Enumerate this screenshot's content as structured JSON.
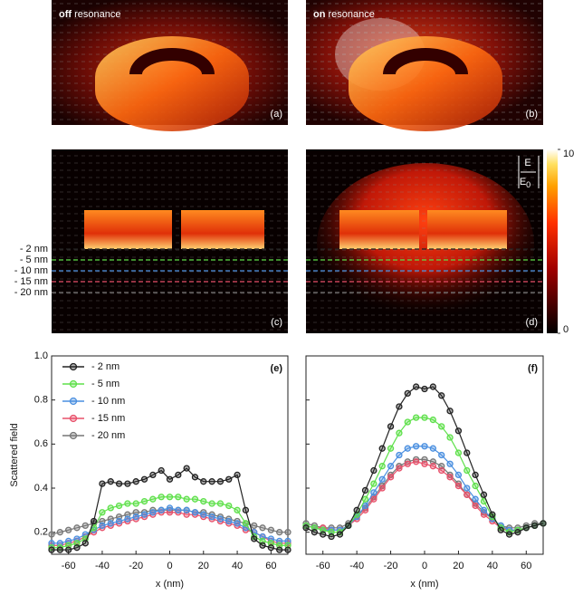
{
  "panels": {
    "a": {
      "title_bold": "off",
      "title_rest": "resonance",
      "label": "(a)"
    },
    "b": {
      "title_bold": "on",
      "title_rest": "resonance",
      "label": "(b)"
    },
    "c": {
      "label": "(c)"
    },
    "d": {
      "label": "(d)"
    }
  },
  "depth_lines": [
    {
      "label": "- 2 nm",
      "color": "#222222"
    },
    {
      "label": "- 5 nm",
      "color": "#5ee04a"
    },
    {
      "label": "- 10 nm",
      "color": "#4a8fe0"
    },
    {
      "label": "- 15 nm",
      "color": "#e8506a"
    },
    {
      "label": "- 20 nm",
      "color": "#777777"
    }
  ],
  "colorbar": {
    "lim": [
      0,
      10
    ],
    "ticks": [
      0,
      10
    ],
    "numerator": "E",
    "denominator": "E",
    "subscript": "0"
  },
  "chart_data": [
    {
      "type": "line",
      "label": "(e)",
      "ylabel": "Scattered field",
      "xlabel": "x (nm)",
      "legend": "upper left",
      "x": [
        -70,
        -65,
        -60,
        -55,
        -50,
        -45,
        -40,
        -35,
        -30,
        -25,
        -20,
        -15,
        -10,
        -5,
        0,
        5,
        10,
        15,
        20,
        25,
        30,
        35,
        40,
        45,
        50,
        55,
        60,
        65,
        70
      ],
      "xlim": [
        -70,
        70
      ],
      "xticks": [
        -60,
        -40,
        -20,
        0,
        20,
        40,
        60
      ],
      "ylim": [
        0.1,
        1
      ],
      "yticks": [
        0.2,
        0.4,
        0.6,
        0.8,
        {
          "value": 1,
          "label": "1.0"
        }
      ],
      "series": [
        {
          "name": "- 2 nm",
          "color": "#222222",
          "values": [
            0.12,
            0.12,
            0.12,
            0.13,
            0.15,
            0.25,
            0.42,
            0.43,
            0.42,
            0.42,
            0.43,
            0.44,
            0.46,
            0.48,
            0.44,
            0.46,
            0.49,
            0.45,
            0.43,
            0.43,
            0.43,
            0.44,
            0.46,
            0.3,
            0.17,
            0.14,
            0.13,
            0.12,
            0.12
          ]
        },
        {
          "name": "- 5 nm",
          "color": "#5ee04a",
          "values": [
            0.13,
            0.13,
            0.14,
            0.15,
            0.17,
            0.22,
            0.29,
            0.31,
            0.32,
            0.33,
            0.33,
            0.34,
            0.35,
            0.36,
            0.36,
            0.36,
            0.35,
            0.35,
            0.34,
            0.33,
            0.33,
            0.32,
            0.3,
            0.24,
            0.18,
            0.16,
            0.15,
            0.14,
            0.14
          ]
        },
        {
          "name": "- 10 nm",
          "color": "#4a8fe0",
          "values": [
            0.15,
            0.15,
            0.16,
            0.17,
            0.19,
            0.21,
            0.23,
            0.24,
            0.25,
            0.26,
            0.27,
            0.28,
            0.29,
            0.3,
            0.31,
            0.3,
            0.3,
            0.29,
            0.28,
            0.27,
            0.26,
            0.25,
            0.24,
            0.22,
            0.2,
            0.18,
            0.17,
            0.16,
            0.16
          ]
        },
        {
          "name": "- 15 nm",
          "color": "#e8506a",
          "values": [
            0.14,
            0.14,
            0.15,
            0.16,
            0.18,
            0.2,
            0.22,
            0.23,
            0.24,
            0.25,
            0.26,
            0.27,
            0.28,
            0.29,
            0.29,
            0.29,
            0.28,
            0.28,
            0.27,
            0.26,
            0.25,
            0.24,
            0.23,
            0.21,
            0.2,
            0.18,
            0.16,
            0.15,
            0.15
          ]
        },
        {
          "name": "- 20 nm",
          "color": "#777777",
          "values": [
            0.19,
            0.2,
            0.21,
            0.22,
            0.23,
            0.24,
            0.25,
            0.26,
            0.27,
            0.28,
            0.29,
            0.29,
            0.3,
            0.3,
            0.3,
            0.3,
            0.3,
            0.29,
            0.29,
            0.28,
            0.27,
            0.26,
            0.25,
            0.24,
            0.23,
            0.22,
            0.21,
            0.2,
            0.2
          ]
        }
      ]
    },
    {
      "type": "line",
      "label": "(f)",
      "xlabel": "x (nm)",
      "ytick_labels": false,
      "x": [
        -70,
        -65,
        -60,
        -55,
        -50,
        -45,
        -40,
        -35,
        -30,
        -25,
        -20,
        -15,
        -10,
        -5,
        0,
        5,
        10,
        15,
        20,
        25,
        30,
        35,
        40,
        45,
        50,
        55,
        60,
        65,
        70
      ],
      "xlim": [
        -70,
        70
      ],
      "xticks": [
        -60,
        -40,
        -20,
        0,
        20,
        40,
        60
      ],
      "ylim": [
        0.1,
        1
      ],
      "yticks": [
        0.2,
        0.4,
        0.6,
        0.8,
        1
      ],
      "series": [
        {
          "color": "#222222",
          "values": [
            0.22,
            0.2,
            0.19,
            0.18,
            0.19,
            0.23,
            0.3,
            0.39,
            0.48,
            0.58,
            0.68,
            0.77,
            0.83,
            0.86,
            0.85,
            0.86,
            0.82,
            0.75,
            0.66,
            0.56,
            0.46,
            0.37,
            0.28,
            0.21,
            0.19,
            0.2,
            0.22,
            0.23,
            0.24
          ]
        },
        {
          "color": "#5ee04a",
          "values": [
            0.23,
            0.22,
            0.21,
            0.2,
            0.2,
            0.23,
            0.28,
            0.35,
            0.42,
            0.5,
            0.58,
            0.65,
            0.7,
            0.72,
            0.72,
            0.71,
            0.68,
            0.63,
            0.56,
            0.48,
            0.41,
            0.34,
            0.27,
            0.22,
            0.2,
            0.21,
            0.22,
            0.23,
            0.24
          ]
        },
        {
          "color": "#4a8fe0",
          "values": [
            0.23,
            0.22,
            0.21,
            0.21,
            0.21,
            0.23,
            0.27,
            0.32,
            0.38,
            0.44,
            0.5,
            0.55,
            0.58,
            0.59,
            0.59,
            0.58,
            0.55,
            0.51,
            0.46,
            0.4,
            0.35,
            0.3,
            0.26,
            0.23,
            0.21,
            0.21,
            0.22,
            0.23,
            0.24
          ]
        },
        {
          "color": "#e8506a",
          "values": [
            0.23,
            0.22,
            0.22,
            0.21,
            0.21,
            0.23,
            0.26,
            0.3,
            0.35,
            0.4,
            0.45,
            0.49,
            0.51,
            0.52,
            0.51,
            0.5,
            0.48,
            0.45,
            0.41,
            0.37,
            0.32,
            0.28,
            0.25,
            0.22,
            0.21,
            0.21,
            0.22,
            0.23,
            0.24
          ]
        },
        {
          "color": "#777777",
          "values": [
            0.24,
            0.23,
            0.22,
            0.22,
            0.22,
            0.24,
            0.27,
            0.31,
            0.36,
            0.41,
            0.46,
            0.5,
            0.52,
            0.53,
            0.53,
            0.52,
            0.5,
            0.46,
            0.42,
            0.37,
            0.33,
            0.29,
            0.26,
            0.23,
            0.22,
            0.22,
            0.23,
            0.24,
            0.24
          ]
        }
      ]
    }
  ]
}
